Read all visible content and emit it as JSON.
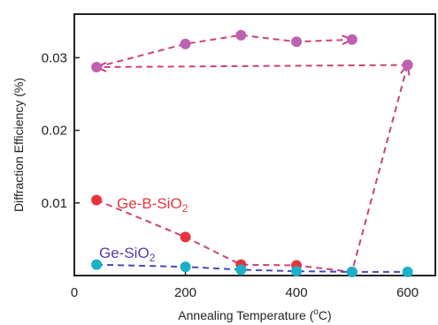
{
  "chart_data": {
    "type": "scatter",
    "title": "",
    "xlabel": "Annealing Temperature (",
    "xlabel_degree": "o",
    "xlabel_end": "C)",
    "ylabel": "Diffraction Efficiency (%)",
    "xlim": [
      0,
      650
    ],
    "ylim": [
      0,
      0.036
    ],
    "grid": false,
    "x_ticks": [
      0,
      200,
      400,
      600
    ],
    "x_tick_labels": [
      "0",
      "200",
      "400",
      "600"
    ],
    "y_ticks": [
      0.01,
      0.02,
      0.03
    ],
    "y_tick_labels": [
      "0.01",
      "0.02",
      "0.03"
    ],
    "series": [
      {
        "name": "Ge-B-SiO2",
        "name_base": "Ge-B-SiO",
        "name_sub": "2",
        "color": "#e8343e",
        "line_color": "#c8437a",
        "points": [
          {
            "x": 40,
            "y": 0.0104
          },
          {
            "x": 200,
            "y": 0.0053
          },
          {
            "x": 300,
            "y": 0.0015
          },
          {
            "x": 400,
            "y": 0.0014
          },
          {
            "x": 500,
            "y": 0.0005
          },
          {
            "x": 600,
            "y": 0.029
          }
        ]
      },
      {
        "name": "",
        "color": "#c060b0",
        "line_color": "#c8437a",
        "points": [
          {
            "x": 600,
            "y": 0.029
          },
          {
            "x": 40,
            "y": 0.0287
          },
          {
            "x": 200,
            "y": 0.0319
          },
          {
            "x": 300,
            "y": 0.0331
          },
          {
            "x": 400,
            "y": 0.0322
          },
          {
            "x": 500,
            "y": 0.0325
          }
        ]
      },
      {
        "name": "Ge-SiO2",
        "name_base": "Ge-SiO",
        "name_sub": "2",
        "color": "#1ab0c8",
        "line_color": "#4848b8",
        "points": [
          {
            "x": 40,
            "y": 0.0015
          },
          {
            "x": 200,
            "y": 0.0012
          },
          {
            "x": 300,
            "y": 0.0008
          },
          {
            "x": 400,
            "y": 0.0006
          },
          {
            "x": 500,
            "y": 0.0005
          },
          {
            "x": 600,
            "y": 0.0005
          }
        ]
      }
    ],
    "annotations": [
      {
        "series_index": 0,
        "color": "#e8343e"
      },
      {
        "series_index": 2,
        "color": "#5a3aa8"
      }
    ]
  }
}
